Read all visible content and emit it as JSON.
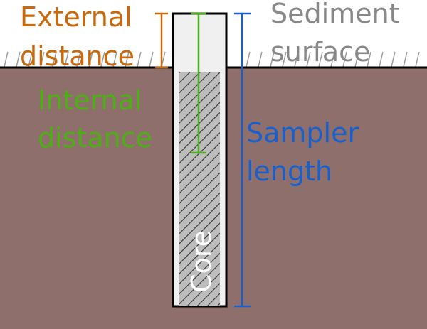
{
  "labels": {
    "external_distance": [
      "External",
      "distance"
    ],
    "sediment_surface": [
      "Sediment",
      "surface"
    ],
    "internal_distance": [
      "Internal",
      "distance"
    ],
    "sampler_length": [
      "Sampler",
      "length"
    ],
    "core": "Core"
  },
  "colors": {
    "sediment": "#8f6f6c",
    "external": "#c8690e",
    "surface": "#888888",
    "internal": "#4cb014",
    "sampler": "#1a60cc",
    "core_text": "#ffffff",
    "tube_fill": "#f0f0f0",
    "outline": "#000000"
  }
}
